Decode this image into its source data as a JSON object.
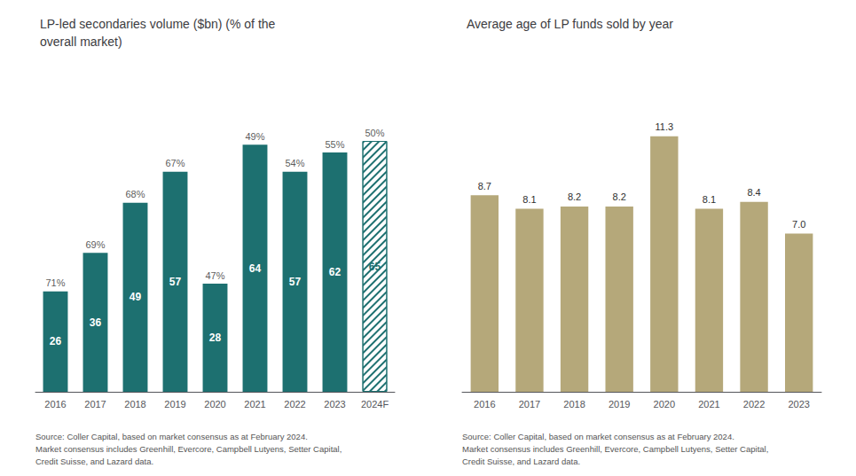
{
  "chart_data": [
    {
      "type": "bar",
      "title": "LP-led secondaries volume ($bn) (% of the\noverall market)",
      "categories": [
        "2016",
        "2017",
        "2018",
        "2019",
        "2020",
        "2021",
        "2022",
        "2023",
        "2024F"
      ],
      "values": [
        26,
        36,
        49,
        57,
        28,
        64,
        57,
        62,
        65
      ],
      "annotations": [
        "71%",
        "69%",
        "68%",
        "67%",
        "47%",
        "49%",
        "54%",
        "55%",
        "50%"
      ],
      "color": "#1d7070",
      "ylim": [
        0,
        82
      ],
      "grid": false,
      "data_labels": true,
      "tick_labels": "x",
      "source": "Source: Coller Capital, based on market consensus as at February 2024.\nMarket consensus includes Greenhill, Evercore, Campbell Lutyens, Setter Capital,\nCredit Suisse, and Lazard data."
    },
    {
      "type": "bar",
      "title": "Average age of LP funds sold by year",
      "categories": [
        "2016",
        "2017",
        "2018",
        "2019",
        "2020",
        "2021",
        "2022",
        "2023"
      ],
      "values": [
        8.7,
        8.1,
        8.2,
        8.2,
        11.3,
        8.1,
        8.4,
        7.0
      ],
      "value_labels": [
        "8.7",
        "8.1",
        "8.2",
        "8.2",
        "11.3",
        "8.1",
        "8.4",
        "7.0"
      ],
      "color": "#b5a87a",
      "ylim": [
        0,
        14
      ],
      "grid": false,
      "data_labels": true,
      "tick_labels": "x",
      "source": "Source: Coller Capital, based on market consensus as at February 2024.\nMarket consensus includes Greenhill, Evercore, Campbell Lutyens, Setter Capital,\nCredit Suisse, and Lazard data."
    }
  ]
}
